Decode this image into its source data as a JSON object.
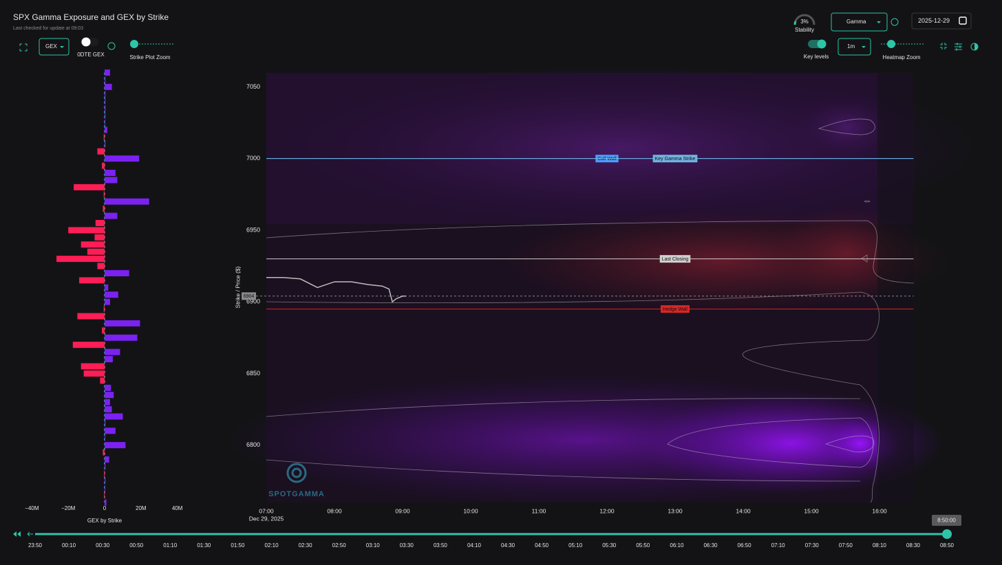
{
  "header": {
    "title": "SPX Gamma Exposure and GEX by Strike",
    "subtitle": "Last checked for update at 09:03",
    "stability_value": "3%",
    "stability_label": "Stability",
    "mode": "Gamma",
    "date": "2025-12-29"
  },
  "controls": {
    "gex_select": "GEX",
    "odte": "0DTE GEX",
    "strike_zoom": "Strike Plot Zoom",
    "key_levels": "Key levels",
    "interval": "1m",
    "heatmap_zoom": "Heatmap Zoom"
  },
  "gex_chart": {
    "type": "bar",
    "orientation": "horizontal",
    "xlabel": "GEX by Strike",
    "xlim": [
      -50,
      50
    ],
    "xticks": [
      {
        "value": -40,
        "label": "−40M"
      },
      {
        "value": -20,
        "label": "−20M"
      },
      0,
      {
        "value": 20,
        "label": "20M"
      },
      {
        "value": 40,
        "label": "40M"
      }
    ],
    "colors": {
      "positive": "#7b22f2",
      "negative": "#ff1d55"
    },
    "strikes": [
      7060,
      7055,
      7050,
      7045,
      7040,
      7035,
      7030,
      7025,
      7020,
      7015,
      7010,
      7005,
      7000,
      6995,
      6990,
      6985,
      6980,
      6975,
      6970,
      6965,
      6960,
      6955,
      6950,
      6945,
      6940,
      6935,
      6930,
      6925,
      6920,
      6915,
      6910,
      6905,
      6900,
      6895,
      6890,
      6885,
      6880,
      6875,
      6870,
      6865,
      6860,
      6855,
      6850,
      6845,
      6840,
      6835,
      6830,
      6825,
      6820,
      6815,
      6810,
      6805,
      6800,
      6795,
      6790,
      6785,
      6780,
      6775,
      6770,
      6765,
      6760
    ],
    "values": [
      3,
      0.5,
      4,
      0.5,
      0.5,
      0.5,
      0.5,
      0.3,
      1.5,
      -0.5,
      0.5,
      -4,
      19,
      -1.5,
      6,
      7,
      -17,
      -0.5,
      24.5,
      -1,
      7,
      -5,
      -20,
      -5.5,
      -13,
      -9.5,
      -26.5,
      -4,
      13.5,
      -14,
      2,
      7.5,
      3,
      -0.5,
      -15,
      19.5,
      -1.5,
      18,
      -17.5,
      8.5,
      4.5,
      -13,
      -11.5,
      -2.5,
      3.5,
      5,
      3,
      4,
      10,
      0.5,
      6,
      0.3,
      11.5,
      -1,
      2.5,
      0.5,
      -0.3,
      0.5,
      0.3,
      -0.3,
      1
    ]
  },
  "heatmap": {
    "type": "line",
    "ylabel": "Strike / Price ($)",
    "ylim": [
      6760,
      7060
    ],
    "yticks": [
      6800,
      6850,
      6900,
      6950,
      7000,
      7050
    ],
    "xlim": [
      7,
      16.5
    ],
    "xticks": [
      {
        "value": 7,
        "label": "07:00"
      },
      {
        "value": 8,
        "label": "08:00"
      },
      {
        "value": 9,
        "label": "09:00"
      },
      {
        "value": 10,
        "label": "10:00"
      },
      {
        "value": 11,
        "label": "11:00"
      },
      {
        "value": 12,
        "label": "12:00"
      },
      {
        "value": 13,
        "label": "13:00"
      },
      {
        "value": 14,
        "label": "14:00"
      },
      {
        "value": 15,
        "label": "15:00"
      },
      {
        "value": 16,
        "label": "16:00"
      }
    ],
    "date_label": "Dec 29, 2025",
    "price": {
      "color": "#bdbdbd",
      "x": [
        7,
        7.25,
        7.5,
        7.75,
        8,
        8.25,
        8.5,
        8.7,
        8.8,
        8.85,
        8.9,
        9,
        9.05
      ],
      "values": [
        6917,
        6917,
        6916,
        6910,
        6914,
        6914,
        6912,
        6911,
        6909,
        6900,
        6902,
        6904,
        6904
      ]
    },
    "current_price": 6904,
    "levels": [
      {
        "name": "Call Wall",
        "value": 7000,
        "color": "#4a9eff"
      },
      {
        "name": "Key Gamma Strike",
        "value": 7000,
        "color": "#6fb3e0"
      },
      {
        "name": "Last Closing",
        "value": 6930,
        "color": "#cfcfcf"
      },
      {
        "name": "Hedge Wall",
        "value": 6895,
        "color": "#d92626"
      }
    ],
    "watermark": "SPOTGAMMA"
  },
  "timeline": {
    "value": "8:50:00",
    "labels": [
      "23:50",
      "00:10",
      "00:30",
      "00:50",
      "01:10",
      "01:30",
      "01:50",
      "02:10",
      "02:30",
      "02:50",
      "03:10",
      "03:30",
      "03:50",
      "04:10",
      "04:30",
      "04:50",
      "05:10",
      "05:30",
      "05:50",
      "06:10",
      "06:30",
      "06:50",
      "07:10",
      "07:30",
      "07:50",
      "08:10",
      "08:30",
      "08:50"
    ]
  }
}
